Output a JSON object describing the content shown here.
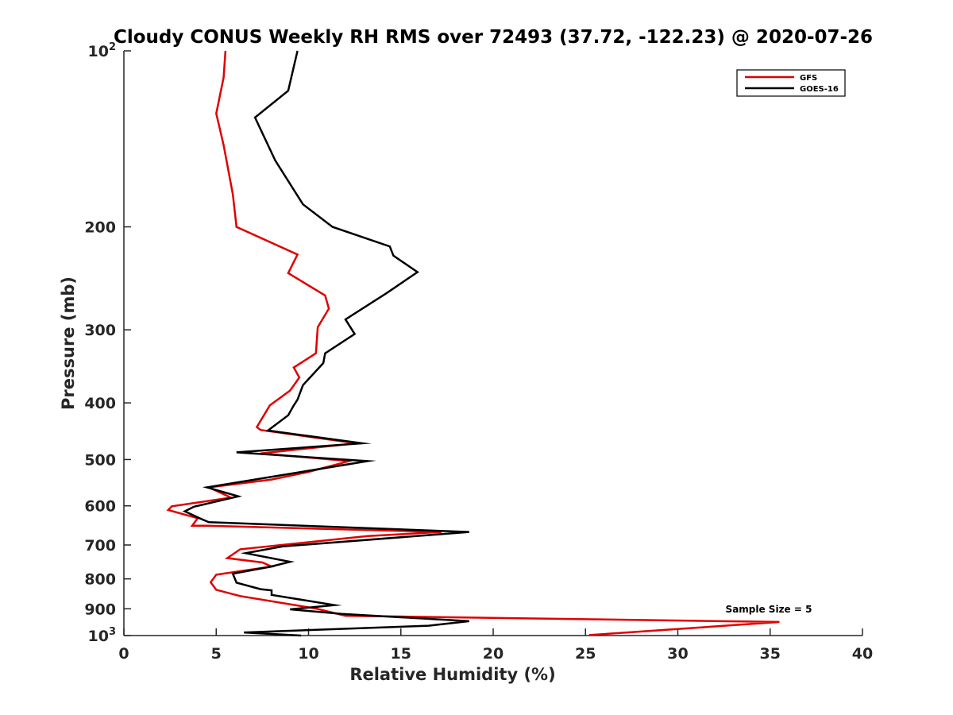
{
  "chart_data": {
    "type": "line",
    "title": "Cloudy CONUS Weekly RH RMS over 72493 (37.72, -122.23) @ 2020-07-26",
    "xlabel": "Relative Humidity (%)",
    "ylabel": "Pressure (mb)",
    "xlim": [
      0,
      40
    ],
    "ylim": [
      100,
      1000
    ],
    "y_scale": "log",
    "y_reversed": true,
    "x_ticks": [
      "0",
      "5",
      "10",
      "15",
      "20",
      "25",
      "30",
      "35",
      "40"
    ],
    "y_ticks": [
      {
        "value": 100,
        "base": "10",
        "exp": "2"
      },
      {
        "value": 200,
        "label": "200"
      },
      {
        "value": 300,
        "label": "300"
      },
      {
        "value": 400,
        "label": "400"
      },
      {
        "value": 500,
        "label": "500"
      },
      {
        "value": 600,
        "label": "600"
      },
      {
        "value": 700,
        "label": "700"
      },
      {
        "value": 800,
        "label": "800"
      },
      {
        "value": 900,
        "label": "900"
      },
      {
        "value": 1000,
        "base": "10",
        "exp": "3"
      }
    ],
    "grid": false,
    "legend_position": "top-right",
    "annotation": "Sample Size = 5",
    "series": [
      {
        "name": "GFS",
        "color": "#e00000",
        "points": [
          [
            5.5,
            100
          ],
          [
            5.4,
            111
          ],
          [
            5.0,
            128
          ],
          [
            5.4,
            145
          ],
          [
            5.9,
            176
          ],
          [
            6.1,
            200
          ],
          [
            9.4,
            223
          ],
          [
            8.9,
            240
          ],
          [
            10.9,
            262
          ],
          [
            11.1,
            276
          ],
          [
            10.5,
            297
          ],
          [
            10.4,
            329
          ],
          [
            9.2,
            348
          ],
          [
            9.5,
            362
          ],
          [
            9.0,
            381
          ],
          [
            7.9,
            404
          ],
          [
            7.2,
            440
          ],
          [
            7.4,
            445
          ],
          [
            12.6,
            469
          ],
          [
            7.4,
            488
          ],
          [
            12.2,
            503
          ],
          [
            10.0,
            525
          ],
          [
            8.0,
            541
          ],
          [
            4.6,
            558
          ],
          [
            5.8,
            581
          ],
          [
            2.6,
            601
          ],
          [
            2.4,
            610
          ],
          [
            4.0,
            630
          ],
          [
            3.7,
            649
          ],
          [
            4.5,
            649
          ],
          [
            17.2,
            665
          ],
          [
            13.2,
            676
          ],
          [
            6.3,
            712
          ],
          [
            5.6,
            737
          ],
          [
            7.5,
            750
          ],
          [
            8.0,
            762
          ],
          [
            5.0,
            787
          ],
          [
            4.7,
            811
          ],
          [
            5.0,
            835
          ],
          [
            6.3,
            856
          ],
          [
            10.4,
            899
          ],
          [
            12.0,
            925
          ],
          [
            35.5,
            948
          ],
          [
            25.2,
            998
          ]
        ]
      },
      {
        "name": "GOES-16",
        "color": "#000000",
        "points": [
          [
            9.4,
            100
          ],
          [
            8.9,
            117
          ],
          [
            7.1,
            130
          ],
          [
            8.2,
            154
          ],
          [
            9.7,
            183
          ],
          [
            11.3,
            200
          ],
          [
            14.4,
            216
          ],
          [
            14.6,
            224
          ],
          [
            15.9,
            239
          ],
          [
            14.2,
            260
          ],
          [
            12.0,
            288
          ],
          [
            12.5,
            305
          ],
          [
            10.9,
            329
          ],
          [
            10.8,
            342
          ],
          [
            9.7,
            373
          ],
          [
            9.4,
            395
          ],
          [
            9.2,
            404
          ],
          [
            8.9,
            420
          ],
          [
            7.8,
            446
          ],
          [
            12.9,
            469
          ],
          [
            6.1,
            486
          ],
          [
            13.2,
            503
          ],
          [
            4.5,
            558
          ],
          [
            6.2,
            578
          ],
          [
            3.8,
            602
          ],
          [
            3.3,
            613
          ],
          [
            4.1,
            630
          ],
          [
            4.6,
            640
          ],
          [
            18.7,
            665
          ],
          [
            8.6,
            704
          ],
          [
            6.6,
            723
          ],
          [
            9.0,
            748
          ],
          [
            7.9,
            763
          ],
          [
            5.9,
            784
          ],
          [
            6.1,
            812
          ],
          [
            7.4,
            833
          ],
          [
            8.0,
            837
          ],
          [
            8.0,
            852
          ],
          [
            11.4,
            887
          ],
          [
            9.0,
            902
          ],
          [
            11.8,
            918
          ],
          [
            18.7,
            945
          ],
          [
            16.5,
            962
          ],
          [
            6.5,
            988
          ],
          [
            9.6,
            1000
          ]
        ]
      }
    ]
  }
}
